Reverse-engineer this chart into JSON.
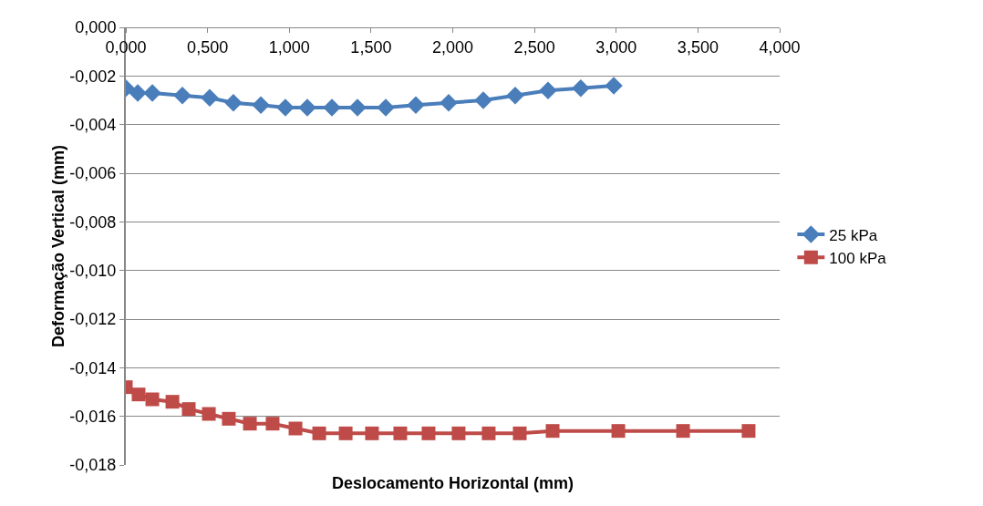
{
  "chart_data": {
    "type": "line",
    "xlabel": "Deslocamento Horizontal (mm)",
    "ylabel": "Deformação Vertical (mm)",
    "xlim": [
      0,
      4
    ],
    "xticks": [
      {
        "value": 0,
        "label": "0,000"
      },
      {
        "value": 0.5,
        "label": "0,500"
      },
      {
        "value": 1,
        "label": "1,000"
      },
      {
        "value": 1.5,
        "label": "1,500"
      },
      {
        "value": 2,
        "label": "2,000"
      },
      {
        "value": 2.5,
        "label": "2,500"
      },
      {
        "value": 3,
        "label": "3,000"
      },
      {
        "value": 3.5,
        "label": "3,500"
      },
      {
        "value": 4,
        "label": "4,000"
      }
    ],
    "ylim": [
      -0.018,
      0
    ],
    "yticks": [
      {
        "value": 0,
        "label": "0,000"
      },
      {
        "value": -0.002,
        "label": "-0,002"
      },
      {
        "value": -0.004,
        "label": "-0,004"
      },
      {
        "value": -0.006,
        "label": "-0,006"
      },
      {
        "value": -0.008,
        "label": "-0,008"
      },
      {
        "value": -0.01,
        "label": "-0,010"
      },
      {
        "value": -0.012,
        "label": "-0,012"
      },
      {
        "value": -0.014,
        "label": "-0,014"
      },
      {
        "value": -0.016,
        "label": "-0,016"
      },
      {
        "value": -0.018,
        "label": "-0,018"
      }
    ],
    "grid": "y",
    "legend": "right",
    "series": [
      {
        "name": "25 kPa",
        "color": "#4a7ebb",
        "marker": "diamond",
        "x": [
          0,
          0.073,
          0.162,
          0.346,
          0.513,
          0.658,
          0.826,
          0.976,
          1.11,
          1.261,
          1.417,
          1.59,
          1.774,
          1.975,
          2.187,
          2.382,
          2.583,
          2.783,
          2.985
        ],
        "values": [
          -0.0025,
          -0.0027,
          -0.0027,
          -0.0028,
          -0.0029,
          -0.0031,
          -0.0032,
          -0.0033,
          -0.0033,
          -0.0033,
          -0.0033,
          -0.0033,
          -0.0032,
          -0.0031,
          -0.003,
          -0.0028,
          -0.0026,
          -0.0025,
          -0.0024
        ]
      },
      {
        "name": "100 kPa",
        "color": "#be4b48",
        "marker": "square",
        "x": [
          0,
          0.078,
          0.162,
          0.285,
          0.385,
          0.508,
          0.63,
          0.759,
          0.898,
          1.038,
          1.183,
          1.345,
          1.506,
          1.679,
          1.852,
          2.036,
          2.22,
          2.41,
          2.611,
          3.013,
          3.409,
          3.81
        ],
        "values": [
          -0.0148,
          -0.0151,
          -0.0153,
          -0.0154,
          -0.0157,
          -0.0159,
          -0.0161,
          -0.0163,
          -0.0163,
          -0.0165,
          -0.0167,
          -0.0167,
          -0.0167,
          -0.0167,
          -0.0167,
          -0.0167,
          -0.0167,
          -0.0167,
          -0.0166,
          -0.0166,
          -0.0166,
          -0.0166
        ]
      }
    ]
  }
}
